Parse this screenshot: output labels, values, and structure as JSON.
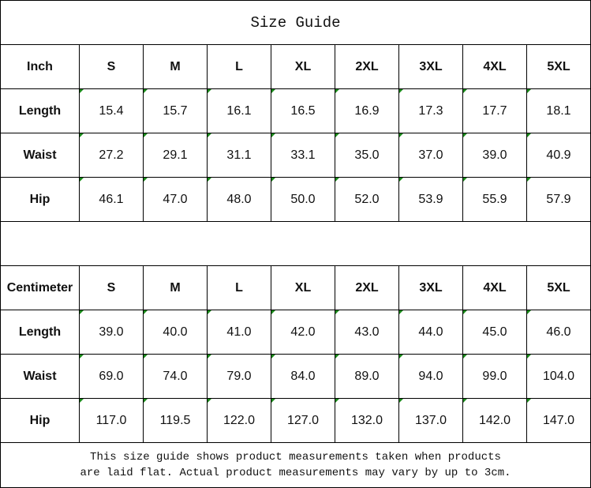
{
  "title": "Size Guide",
  "sizes": [
    "S",
    "M",
    "L",
    "XL",
    "2XL",
    "3XL",
    "4XL",
    "5XL"
  ],
  "tables": [
    {
      "unit": "Inch",
      "rows": [
        {
          "label": "Length",
          "values": [
            "15.4",
            "15.7",
            "16.1",
            "16.5",
            "16.9",
            "17.3",
            "17.7",
            "18.1"
          ]
        },
        {
          "label": "Waist",
          "values": [
            "27.2",
            "29.1",
            "31.1",
            "33.1",
            "35.0",
            "37.0",
            "39.0",
            "40.9"
          ]
        },
        {
          "label": "Hip",
          "values": [
            "46.1",
            "47.0",
            "48.0",
            "50.0",
            "52.0",
            "53.9",
            "55.9",
            "57.9"
          ]
        }
      ]
    },
    {
      "unit": "Centimeter",
      "rows": [
        {
          "label": "Length",
          "values": [
            "39.0",
            "40.0",
            "41.0",
            "42.0",
            "43.0",
            "44.0",
            "45.0",
            "46.0"
          ]
        },
        {
          "label": "Waist",
          "values": [
            "69.0",
            "74.0",
            "79.0",
            "84.0",
            "89.0",
            "94.0",
            "99.0",
            "104.0"
          ]
        },
        {
          "label": "Hip",
          "values": [
            "117.0",
            "119.5",
            "122.0",
            "127.0",
            "132.0",
            "137.0",
            "142.0",
            "147.0"
          ]
        }
      ]
    }
  ],
  "footer": {
    "line1": "This size guide shows product measurements taken when products",
    "line2": "are laid flat. Actual product measurements may vary by up to 3cm."
  },
  "colors": {
    "error_indicator": "#1a8a1a",
    "border": "#000000"
  }
}
